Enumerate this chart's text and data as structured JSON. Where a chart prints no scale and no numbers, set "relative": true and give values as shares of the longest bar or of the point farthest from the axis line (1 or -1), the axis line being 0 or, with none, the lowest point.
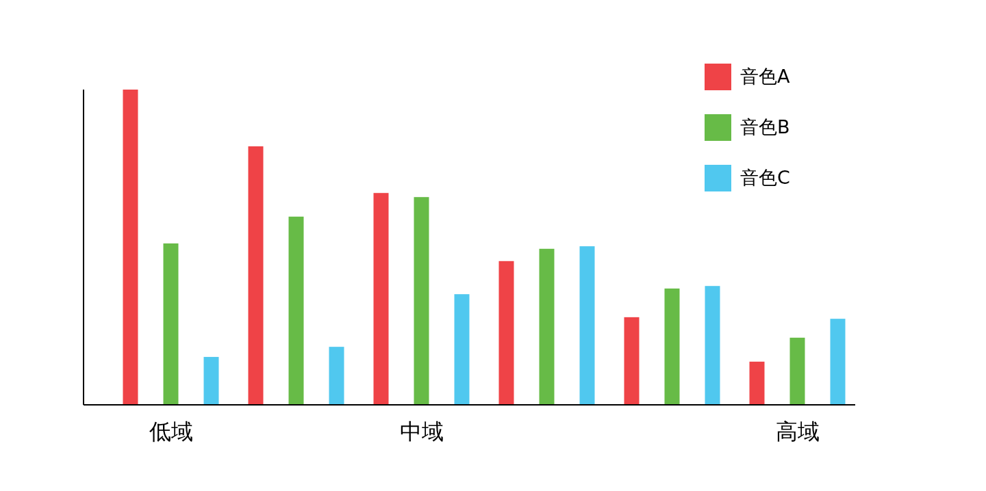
{
  "chart_data": {
    "type": "bar",
    "relative": true,
    "categories": [
      "低域",
      null,
      "中域",
      null,
      null,
      "高域"
    ],
    "series": [
      {
        "name": "音色A",
        "color": "#ef4347",
        "values": [
          1.0,
          0.82,
          0.672,
          0.456,
          0.278,
          0.137
        ]
      },
      {
        "name": "音色B",
        "color": "#67bb47",
        "values": [
          0.512,
          0.597,
          0.659,
          0.495,
          0.369,
          0.213
        ]
      },
      {
        "name": "音色C",
        "color": "#50c8ef",
        "values": [
          0.152,
          0.184,
          0.351,
          0.503,
          0.377,
          0.273
        ]
      }
    ],
    "legend": "top right"
  }
}
